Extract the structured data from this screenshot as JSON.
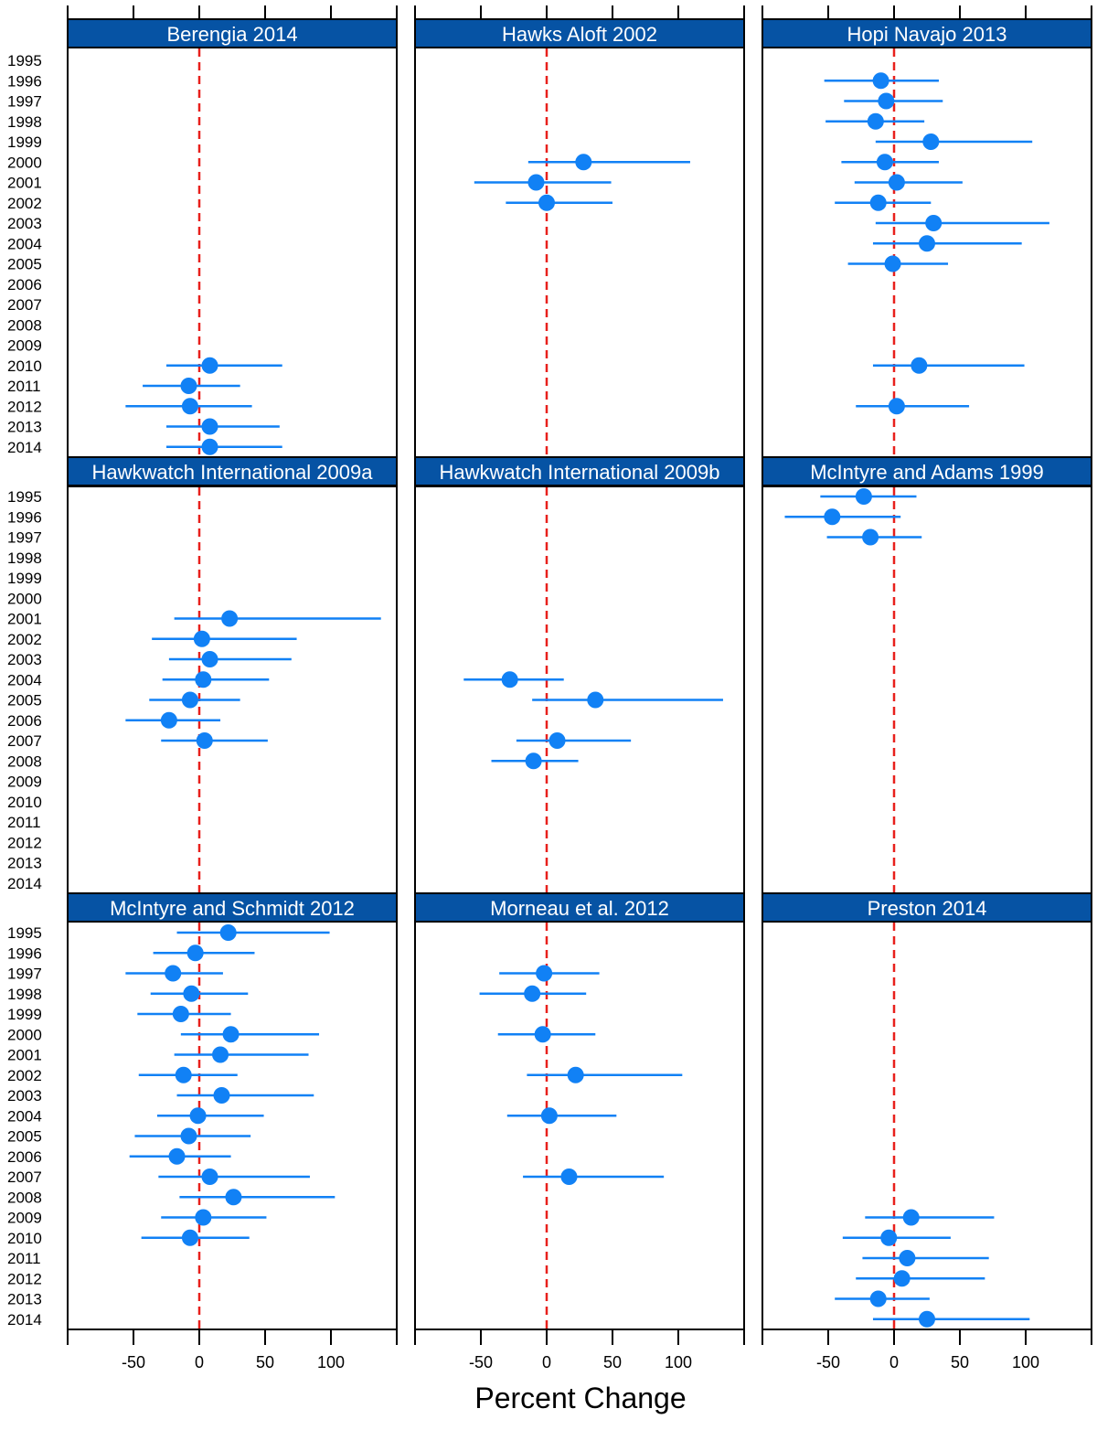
{
  "chart_data": {
    "type": "scatter",
    "subtype": "dot-and-whisker panel plot",
    "xlabel": "Percent Change",
    "xlim": [
      -100,
      150
    ],
    "xticks": [
      -50,
      0,
      50,
      100
    ],
    "xtick_labels": [
      "-50",
      "0",
      "50",
      "100"
    ],
    "reference_line": {
      "x": 0,
      "style": "dashed",
      "color": "#e8201c"
    },
    "years": [
      "1995",
      "1996",
      "1997",
      "1998",
      "1999",
      "2000",
      "2001",
      "2002",
      "2003",
      "2004",
      "2005",
      "2006",
      "2007",
      "2008",
      "2009",
      "2010",
      "2011",
      "2012",
      "2013",
      "2014"
    ],
    "colors": {
      "strip": "#0653a4",
      "point": "#1181f5",
      "line": "#1181f5",
      "reference": "#e8201c"
    },
    "panels": [
      {
        "title": "Berengia 2014",
        "points": [
          {
            "year": "2010",
            "est": 8,
            "lo": -25,
            "hi": 63
          },
          {
            "year": "2011",
            "est": -8,
            "lo": -43,
            "hi": 31
          },
          {
            "year": "2012",
            "est": -7,
            "lo": -56,
            "hi": 40
          },
          {
            "year": "2013",
            "est": 8,
            "lo": -25,
            "hi": 61
          },
          {
            "year": "2014",
            "est": 8,
            "lo": -25,
            "hi": 63
          }
        ]
      },
      {
        "title": "Hawks Aloft 2002",
        "points": [
          {
            "year": "2000",
            "est": 28,
            "lo": -14,
            "hi": 109
          },
          {
            "year": "2001",
            "est": -8,
            "lo": -55,
            "hi": 49
          },
          {
            "year": "2002",
            "est": 0,
            "lo": -31,
            "hi": 50
          }
        ]
      },
      {
        "title": "Hopi Navajo 2013",
        "points": [
          {
            "year": "1996",
            "est": -10,
            "lo": -53,
            "hi": 34
          },
          {
            "year": "1997",
            "est": -6,
            "lo": -38,
            "hi": 37
          },
          {
            "year": "1998",
            "est": -14,
            "lo": -52,
            "hi": 23
          },
          {
            "year": "1999",
            "est": 28,
            "lo": -14,
            "hi": 105
          },
          {
            "year": "2000",
            "est": -7,
            "lo": -40,
            "hi": 34
          },
          {
            "year": "2001",
            "est": 2,
            "lo": -30,
            "hi": 52
          },
          {
            "year": "2002",
            "est": -12,
            "lo": -45,
            "hi": 28
          },
          {
            "year": "2003",
            "est": 30,
            "lo": -14,
            "hi": 118
          },
          {
            "year": "2004",
            "est": 25,
            "lo": -16,
            "hi": 97
          },
          {
            "year": "2005",
            "est": -1,
            "lo": -35,
            "hi": 41
          },
          {
            "year": "2010",
            "est": 19,
            "lo": -16,
            "hi": 99
          },
          {
            "year": "2012",
            "est": 2,
            "lo": -29,
            "hi": 57
          }
        ]
      },
      {
        "title": "Hawkwatch International 2009a",
        "points": [
          {
            "year": "2001",
            "est": 23,
            "lo": -19,
            "hi": 138
          },
          {
            "year": "2002",
            "est": 2,
            "lo": -36,
            "hi": 74
          },
          {
            "year": "2003",
            "est": 8,
            "lo": -23,
            "hi": 70
          },
          {
            "year": "2004",
            "est": 3,
            "lo": -28,
            "hi": 53
          },
          {
            "year": "2005",
            "est": -7,
            "lo": -38,
            "hi": 31
          },
          {
            "year": "2006",
            "est": -23,
            "lo": -56,
            "hi": 16
          },
          {
            "year": "2007",
            "est": 4,
            "lo": -29,
            "hi": 52
          }
        ]
      },
      {
        "title": "Hawkwatch International 2009b",
        "points": [
          {
            "year": "2004",
            "est": -28,
            "lo": -63,
            "hi": 13
          },
          {
            "year": "2005",
            "est": 37,
            "lo": -11,
            "hi": 134
          },
          {
            "year": "2007",
            "est": 8,
            "lo": -23,
            "hi": 64
          },
          {
            "year": "2008",
            "est": -10,
            "lo": -42,
            "hi": 24
          }
        ]
      },
      {
        "title": "McIntyre and Adams 1999",
        "points": [
          {
            "year": "1995",
            "est": -23,
            "lo": -56,
            "hi": 17
          },
          {
            "year": "1996",
            "est": -47,
            "lo": -83,
            "hi": 5
          },
          {
            "year": "1997",
            "est": -18,
            "lo": -51,
            "hi": 21
          }
        ]
      },
      {
        "title": "McIntyre and Schmidt 2012",
        "points": [
          {
            "year": "1995",
            "est": 22,
            "lo": -17,
            "hi": 99
          },
          {
            "year": "1996",
            "est": -3,
            "lo": -35,
            "hi": 42
          },
          {
            "year": "1997",
            "est": -20,
            "lo": -56,
            "hi": 18
          },
          {
            "year": "1998",
            "est": -6,
            "lo": -37,
            "hi": 37
          },
          {
            "year": "1999",
            "est": -14,
            "lo": -47,
            "hi": 24
          },
          {
            "year": "2000",
            "est": 24,
            "lo": -14,
            "hi": 91
          },
          {
            "year": "2001",
            "est": 16,
            "lo": -19,
            "hi": 83
          },
          {
            "year": "2002",
            "est": -12,
            "lo": -46,
            "hi": 29
          },
          {
            "year": "2003",
            "est": 17,
            "lo": -17,
            "hi": 87
          },
          {
            "year": "2004",
            "est": -1,
            "lo": -32,
            "hi": 49
          },
          {
            "year": "2005",
            "est": -8,
            "lo": -49,
            "hi": 39
          },
          {
            "year": "2006",
            "est": -17,
            "lo": -53,
            "hi": 24
          },
          {
            "year": "2007",
            "est": 8,
            "lo": -31,
            "hi": 84
          },
          {
            "year": "2008",
            "est": 26,
            "lo": -15,
            "hi": 103
          },
          {
            "year": "2009",
            "est": 3,
            "lo": -29,
            "hi": 51
          },
          {
            "year": "2010",
            "est": -7,
            "lo": -44,
            "hi": 38
          }
        ]
      },
      {
        "title": "Morneau et al. 2012",
        "points": [
          {
            "year": "1997",
            "est": -2,
            "lo": -36,
            "hi": 40
          },
          {
            "year": "1998",
            "est": -11,
            "lo": -51,
            "hi": 30
          },
          {
            "year": "2000",
            "est": -3,
            "lo": -37,
            "hi": 37
          },
          {
            "year": "2002",
            "est": 22,
            "lo": -15,
            "hi": 103
          },
          {
            "year": "2004",
            "est": 2,
            "lo": -30,
            "hi": 53
          },
          {
            "year": "2007",
            "est": 17,
            "lo": -18,
            "hi": 89
          }
        ]
      },
      {
        "title": "Preston 2014",
        "points": [
          {
            "year": "2009",
            "est": 13,
            "lo": -22,
            "hi": 76
          },
          {
            "year": "2010",
            "est": -4,
            "lo": -39,
            "hi": 43
          },
          {
            "year": "2011",
            "est": 10,
            "lo": -24,
            "hi": 72
          },
          {
            "year": "2012",
            "est": 6,
            "lo": -29,
            "hi": 69
          },
          {
            "year": "2013",
            "est": -12,
            "lo": -45,
            "hi": 27
          },
          {
            "year": "2014",
            "est": 25,
            "lo": -16,
            "hi": 103
          }
        ]
      }
    ]
  }
}
